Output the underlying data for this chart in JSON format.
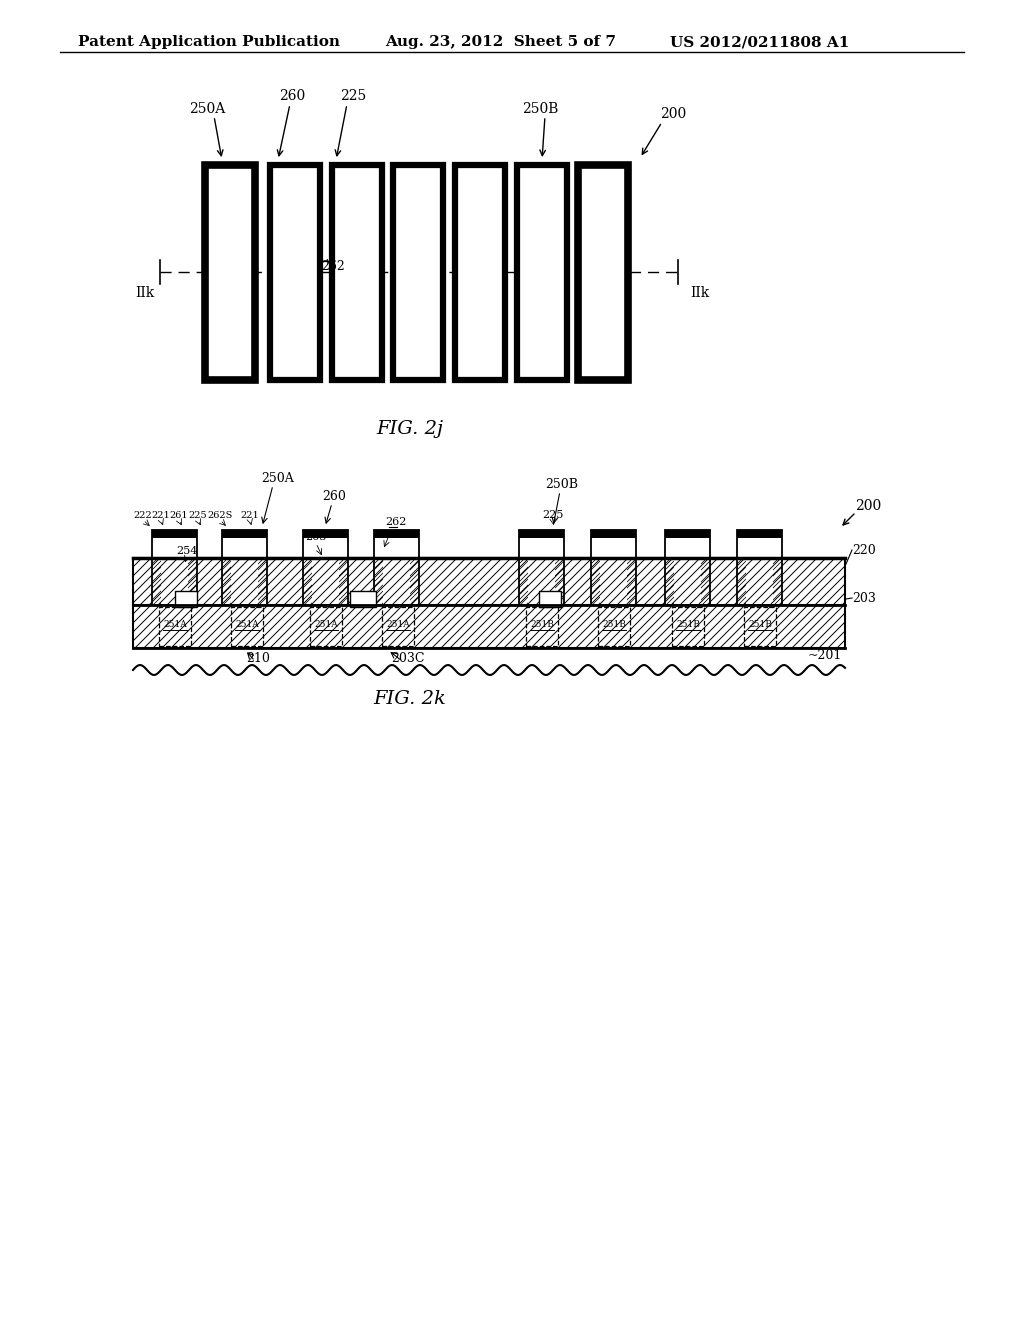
{
  "bg_color": "#ffffff",
  "header_text": "Patent Application Publication",
  "header_date": "Aug. 23, 2012  Sheet 5 of 7",
  "header_patent": "US 2012/0211808 A1",
  "fig2j_label": "FIG. 2j",
  "fig2k_label": "FIG. 2k"
}
